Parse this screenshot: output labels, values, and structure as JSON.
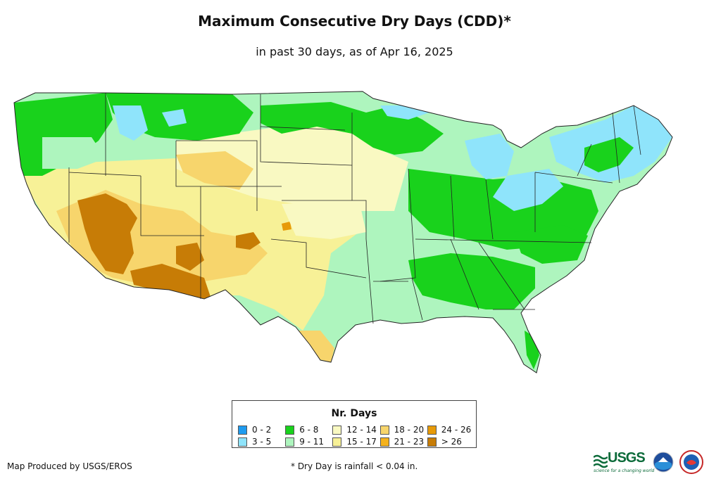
{
  "title": "Maximum Consecutive Dry Days (CDD)*",
  "subtitle": "in past 30 days, as of Apr 16, 2025",
  "legend": {
    "title": "Nr. Days",
    "items": [
      {
        "label": "0 - 2",
        "color": "#1e9bef"
      },
      {
        "label": "3 - 5",
        "color": "#8fe4fb"
      },
      {
        "label": "6 - 8",
        "color": "#19d21c"
      },
      {
        "label": "9 - 11",
        "color": "#aef5be"
      },
      {
        "label": "12 - 14",
        "color": "#f9f9c2"
      },
      {
        "label": "15 - 17",
        "color": "#f7f197"
      },
      {
        "label": "18 - 20",
        "color": "#f7d56c"
      },
      {
        "label": "21 - 23",
        "color": "#f5b21c"
      },
      {
        "label": "24 - 26",
        "color": "#e79a08"
      },
      {
        "label": "> 26",
        "color": "#c77c06"
      }
    ]
  },
  "footer": {
    "credit": "Map Produced by USGS/EROS",
    "footnote": "* Dry Day is rainfall < 0.04 in."
  },
  "logos": {
    "usgs": "USGS",
    "usgs_tagline": "science for a changing world",
    "icons": [
      "usgs-logo",
      "noaa-logo",
      "nws-logo"
    ]
  }
}
